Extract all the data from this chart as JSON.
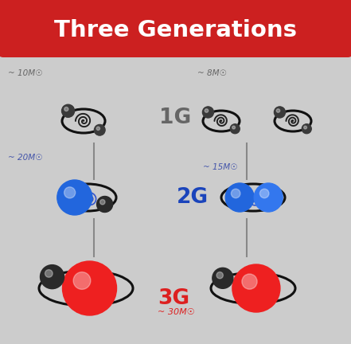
{
  "title": "Three Generations",
  "title_bg": "#cc2020",
  "title_color": "#ffffff",
  "bg_color": "#cccccc",
  "label_1g": "1G",
  "label_2g": "2G",
  "label_3g": "3G",
  "label_1g_color": "#666666",
  "label_2g_color": "#1a44bb",
  "label_3g_color": "#dd2020",
  "mass_10": "~ 10M☉",
  "mass_8": "~ 8M☉",
  "mass_20": "~ 20M☉",
  "mass_15": "~ 15M☉",
  "mass_30": "~ 30M☉",
  "mass_color_blue": "#4455aa",
  "mass_color_dark": "#666666",
  "bh_1g_color": "#3a3a3a",
  "bh_2g_color": "#2266dd",
  "bh_2g_color2": "#3377ee",
  "bh_3g_color": "#ee2020",
  "bh_dark_color": "#2a2a2a",
  "spiral_color_dark": "#222222",
  "spiral_color_blue": "#3355cc"
}
